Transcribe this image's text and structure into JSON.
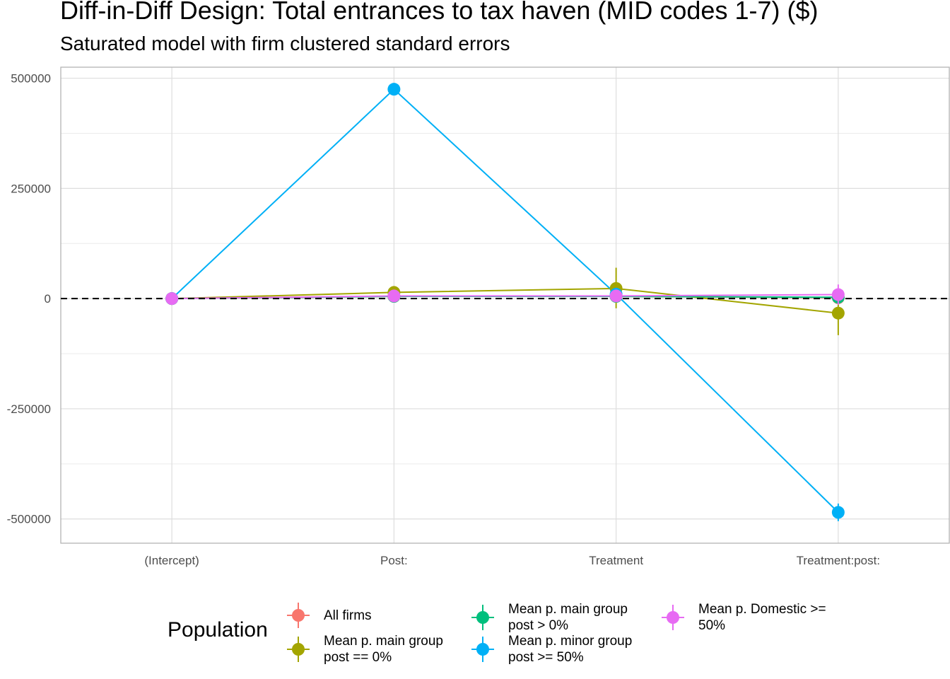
{
  "chart_data": {
    "type": "line",
    "title": "Diff-in-Diff Design: Total entrances to tax haven (MID codes 1-7)  ($)",
    "subtitle": "Saturated model with firm clustered standard errors",
    "xlabel": "",
    "ylabel": "",
    "categories": [
      "(Intercept)",
      "Post:",
      "Treatment",
      "Treatment:post:"
    ],
    "ylim": [
      -555000,
      525000
    ],
    "yticks": [
      500000,
      250000,
      0,
      -250000,
      -500000
    ],
    "ytick_labels": [
      "500000",
      "250000",
      "0",
      "-250000",
      "-500000"
    ],
    "grid": true,
    "reference_line": 0,
    "legend": {
      "title": "Population",
      "position": "bottom"
    },
    "series": [
      {
        "name": "All firms",
        "color": "#F8766D",
        "values": [
          0,
          5000,
          5000,
          2000
        ],
        "lower": [
          0,
          0,
          0,
          -4000
        ],
        "upper": [
          0,
          10000,
          10000,
          8000
        ]
      },
      {
        "name": "Mean p. main group\npost == 0%",
        "color": "#A3A500",
        "values": [
          0,
          14000,
          23000,
          -33000
        ],
        "lower": [
          0,
          2000,
          -22000,
          -83000
        ],
        "upper": [
          0,
          26000,
          70000,
          17000
        ]
      },
      {
        "name": "Mean p. main group\npost > 0%",
        "color": "#00BF7D",
        "values": [
          0,
          5000,
          5000,
          3000
        ],
        "lower": [
          0,
          1000,
          0,
          -3000
        ],
        "upper": [
          0,
          9000,
          10000,
          9000
        ]
      },
      {
        "name": "Mean p. minor group\npost >= 50%",
        "color": "#00B0F6",
        "values": [
          0,
          475000,
          10000,
          -485000
        ],
        "lower": [
          0,
          469000,
          1000,
          -505000
        ],
        "upper": [
          0,
          481000,
          19000,
          -465000
        ]
      },
      {
        "name": "Mean p. Domestic >=\n50%",
        "color": "#E76BF3",
        "values": [
          0,
          6000,
          6000,
          9000
        ],
        "lower": [
          0,
          1000,
          -2000,
          -14000
        ],
        "upper": [
          0,
          11000,
          14000,
          32000
        ]
      }
    ]
  }
}
